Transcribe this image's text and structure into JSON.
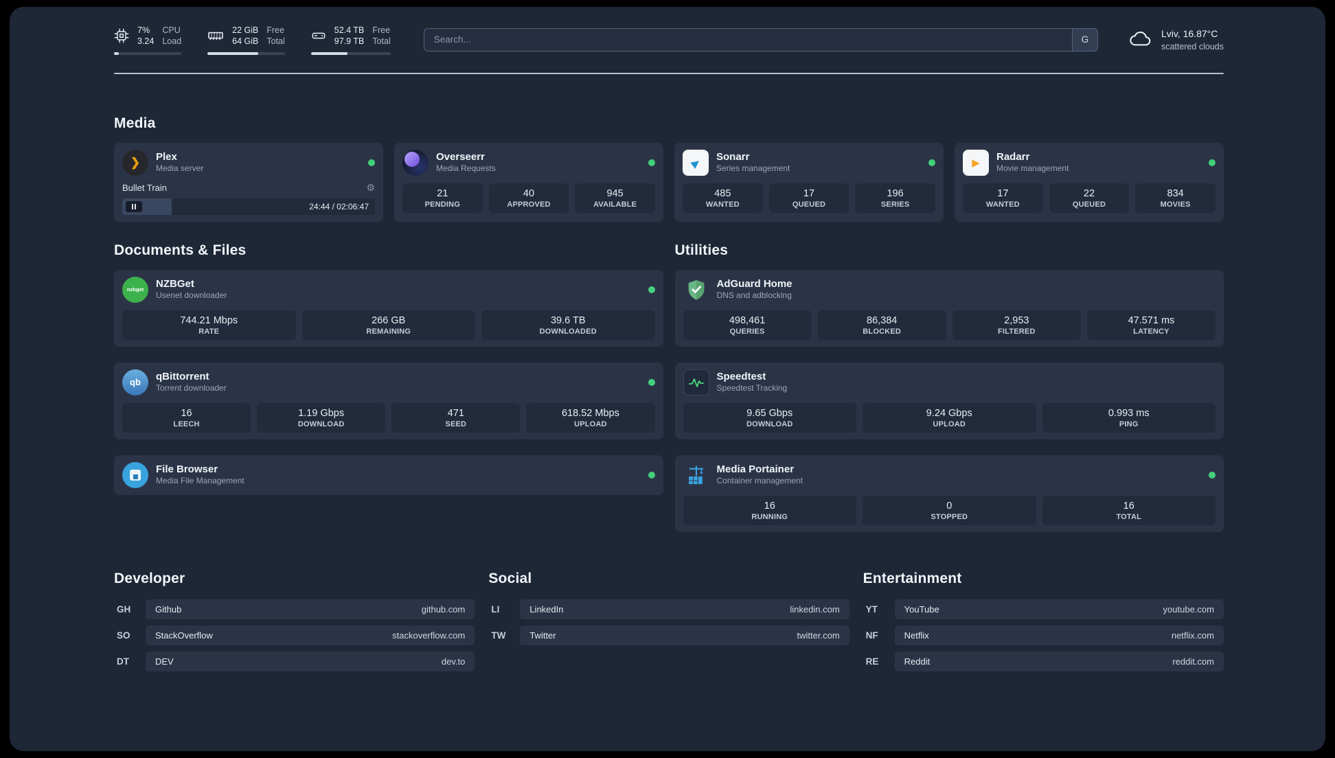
{
  "colors": {
    "accent_green": "#44d07b",
    "background": "#1e2736",
    "card": "#2b3447"
  },
  "icons": {
    "plex_chevron": "❯",
    "gear": "⚙",
    "sonarr_arrow": "▶",
    "radarr_arrow": "▶"
  },
  "topbar": {
    "metrics": [
      {
        "v1": "7%",
        "v2": "3.24",
        "l1": "CPU",
        "l2": "Load",
        "pct": 7
      },
      {
        "v1": "22 GiB",
        "v2": "64 GiB",
        "l1": "Free",
        "l2": "Total",
        "pct": 66
      },
      {
        "v1": "52.4 TB",
        "v2": "97.9 TB",
        "l1": "Free",
        "l2": "Total",
        "pct": 46
      }
    ],
    "search": {
      "placeholder": "Search...",
      "button_label": "G"
    },
    "weather": {
      "location": "Lviv, 16.87°C",
      "condition": "scattered clouds"
    }
  },
  "sections": {
    "media": "Media",
    "documents": "Documents & Files",
    "utilities": "Utilities",
    "developer": "Developer",
    "social": "Social",
    "entertainment": "Entertainment"
  },
  "apps": {
    "plex": {
      "name": "Plex",
      "desc": "Media server",
      "player": {
        "title": "Bullet Train",
        "time": "24:44 / 02:06:47",
        "pct": 19.5
      }
    },
    "overseerr": {
      "name": "Overseerr",
      "desc": "Media Requests",
      "stats": [
        {
          "v": "21",
          "l": "PENDING"
        },
        {
          "v": "40",
          "l": "APPROVED"
        },
        {
          "v": "945",
          "l": "AVAILABLE"
        }
      ]
    },
    "sonarr": {
      "name": "Sonarr",
      "desc": "Series management",
      "stats": [
        {
          "v": "485",
          "l": "WANTED"
        },
        {
          "v": "17",
          "l": "QUEUED"
        },
        {
          "v": "196",
          "l": "SERIES"
        }
      ]
    },
    "radarr": {
      "name": "Radarr",
      "desc": "Movie management",
      "stats": [
        {
          "v": "17",
          "l": "WANTED"
        },
        {
          "v": "22",
          "l": "QUEUED"
        },
        {
          "v": "834",
          "l": "MOVIES"
        }
      ]
    },
    "nzbget": {
      "name": "NZBGet",
      "desc": "Usenet downloader",
      "icon_label": "nzbget",
      "stats": [
        {
          "v": "744.21 Mbps",
          "l": "RATE"
        },
        {
          "v": "266 GB",
          "l": "REMAINING"
        },
        {
          "v": "39.6 TB",
          "l": "DOWNLOADED"
        }
      ]
    },
    "qbittorrent": {
      "name": "qBittorrent",
      "desc": "Torrent downloader",
      "icon_label": "qb",
      "stats": [
        {
          "v": "16",
          "l": "LEECH"
        },
        {
          "v": "1.19 Gbps",
          "l": "DOWNLOAD"
        },
        {
          "v": "471",
          "l": "SEED"
        },
        {
          "v": "618.52 Mbps",
          "l": "UPLOAD"
        }
      ]
    },
    "filebrowser": {
      "name": "File Browser",
      "desc": "Media File Management"
    },
    "adguard": {
      "name": "AdGuard Home",
      "desc": "DNS and adblocking",
      "stats": [
        {
          "v": "498,461",
          "l": "QUERIES"
        },
        {
          "v": "86,384",
          "l": "BLOCKED"
        },
        {
          "v": "2,953",
          "l": "FILTERED"
        },
        {
          "v": "47.571 ms",
          "l": "LATENCY"
        }
      ]
    },
    "speedtest": {
      "name": "Speedtest",
      "desc": "Speedtest Tracking",
      "stats": [
        {
          "v": "9.65 Gbps",
          "l": "DOWNLOAD"
        },
        {
          "v": "9.24 Gbps",
          "l": "UPLOAD"
        },
        {
          "v": "0.993 ms",
          "l": "PING"
        }
      ]
    },
    "portainer": {
      "name": "Media Portainer",
      "desc": "Container management",
      "stats": [
        {
          "v": "16",
          "l": "RUNNING"
        },
        {
          "v": "0",
          "l": "STOPPED"
        },
        {
          "v": "16",
          "l": "TOTAL"
        }
      ]
    }
  },
  "bookmarks": {
    "developer": [
      {
        "abbr": "GH",
        "name": "Github",
        "url": "github.com"
      },
      {
        "abbr": "SO",
        "name": "StackOverflow",
        "url": "stackoverflow.com"
      },
      {
        "abbr": "DT",
        "name": "DEV",
        "url": "dev.to"
      }
    ],
    "social": [
      {
        "abbr": "LI",
        "name": "LinkedIn",
        "url": "linkedin.com"
      },
      {
        "abbr": "TW",
        "name": "Twitter",
        "url": "twitter.com"
      }
    ],
    "entertainment": [
      {
        "abbr": "YT",
        "name": "YouTube",
        "url": "youtube.com"
      },
      {
        "abbr": "NF",
        "name": "Netflix",
        "url": "netflix.com"
      },
      {
        "abbr": "RE",
        "name": "Reddit",
        "url": "reddit.com"
      }
    ]
  }
}
